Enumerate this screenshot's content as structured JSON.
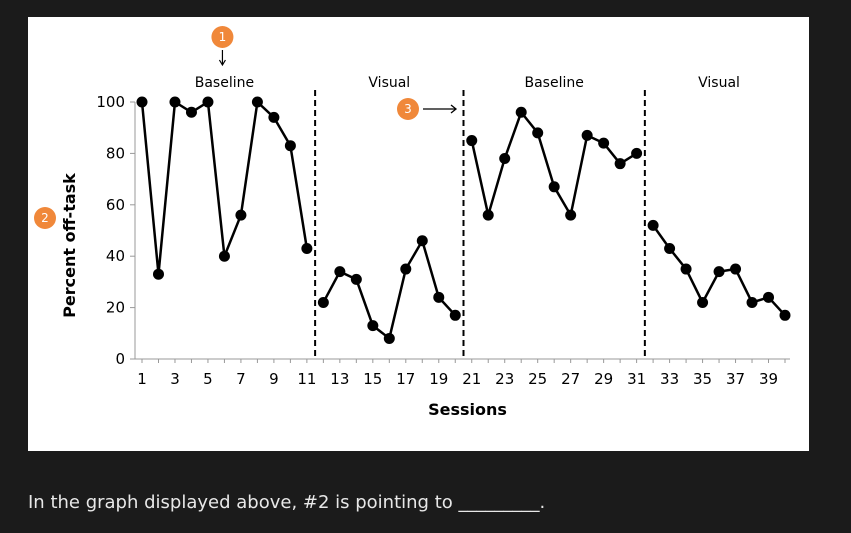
{
  "chart_data": {
    "type": "line",
    "xlabel": "Sessions",
    "ylabel": "Percent off-task",
    "xlim": [
      1,
      40
    ],
    "ylim": [
      0,
      100
    ],
    "yticks": [
      0,
      20,
      40,
      60,
      80,
      100
    ],
    "xticks": [
      1,
      3,
      5,
      7,
      9,
      11,
      13,
      15,
      17,
      19,
      21,
      23,
      25,
      27,
      29,
      31,
      33,
      35,
      37,
      39
    ],
    "phase_lines": [
      11.5,
      20.5,
      31.5
    ],
    "phases": [
      {
        "label": "Baseline",
        "center": 6
      },
      {
        "label": "Visual",
        "center": 16
      },
      {
        "label": "Baseline",
        "center": 26
      },
      {
        "label": "Visual",
        "center": 36
      }
    ],
    "series": [
      {
        "points": [
          [
            1,
            100
          ],
          [
            2,
            33
          ],
          [
            3,
            100
          ],
          [
            4,
            96
          ],
          [
            5,
            100
          ],
          [
            6,
            40
          ],
          [
            7,
            56
          ],
          [
            8,
            100
          ],
          [
            9,
            94
          ],
          [
            10,
            83
          ],
          [
            11,
            43
          ]
        ]
      },
      {
        "points": [
          [
            12,
            22
          ],
          [
            13,
            34
          ],
          [
            14,
            31
          ],
          [
            15,
            13
          ],
          [
            16,
            8
          ],
          [
            17,
            35
          ],
          [
            18,
            46
          ],
          [
            19,
            24
          ],
          [
            20,
            17
          ]
        ]
      },
      {
        "points": [
          [
            21,
            85
          ],
          [
            22,
            56
          ],
          [
            23,
            78
          ],
          [
            24,
            96
          ],
          [
            25,
            88
          ],
          [
            26,
            67
          ],
          [
            27,
            56
          ],
          [
            28,
            87
          ],
          [
            29,
            84
          ],
          [
            30,
            76
          ],
          [
            31,
            80
          ]
        ]
      },
      {
        "points": [
          [
            32,
            52
          ],
          [
            33,
            43
          ],
          [
            34,
            35
          ],
          [
            35,
            22
          ],
          [
            36,
            34
          ],
          [
            37,
            35
          ],
          [
            38,
            22
          ],
          [
            39,
            24
          ],
          [
            40,
            17
          ]
        ]
      }
    ],
    "annotations": [
      {
        "label": "1",
        "target": "phase-label-baseline",
        "arrow": "down",
        "color": "#f0883a"
      },
      {
        "label": "2",
        "target": "y-axis-title",
        "arrow": "none",
        "color": "#f0883a"
      },
      {
        "label": "3",
        "target": "session-21",
        "arrow": "right",
        "color": "#f0883a"
      }
    ]
  },
  "question": {
    "text": "In the graph displayed above, #2 is pointing to _________."
  }
}
